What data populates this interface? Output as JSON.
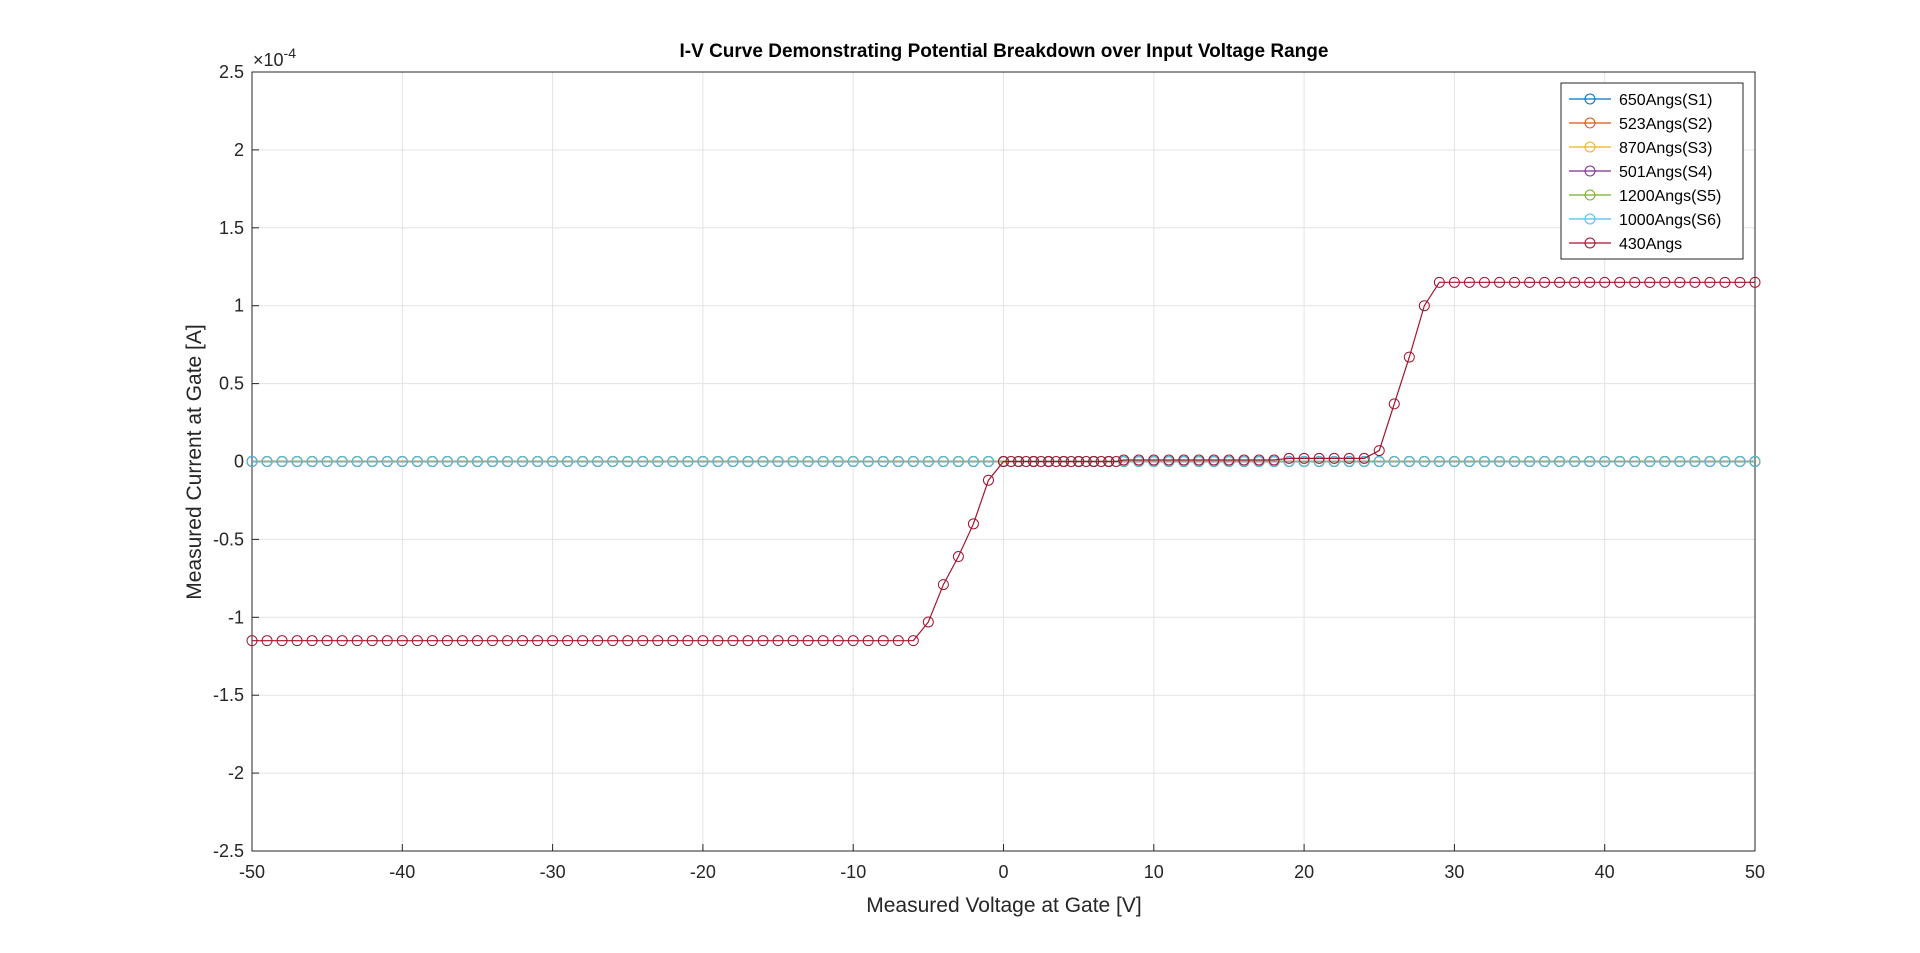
{
  "chart_data": {
    "type": "line",
    "title": "I-V Curve Demonstrating Potential Breakdown over Input Voltage Range",
    "xlabel": "Measured Voltage at Gate [V]",
    "ylabel": "Measured Current at Gate [A]",
    "y_multiplier": {
      "base": "×10",
      "exponent": "-4"
    },
    "xlim": [
      -50,
      50
    ],
    "ylim": [
      -2.5,
      2.5
    ],
    "xticks": [
      -50,
      -40,
      -30,
      -20,
      -10,
      0,
      10,
      20,
      30,
      40,
      50
    ],
    "yticks": [
      -2.5,
      -2,
      -1.5,
      -1,
      -0.5,
      0,
      0.5,
      1,
      1.5,
      2,
      2.5
    ],
    "grid": true,
    "legend": "top-right",
    "marker": "circle",
    "x": [
      -50,
      -49,
      -48,
      -47,
      -46,
      -45,
      -44,
      -43,
      -42,
      -41,
      -40,
      -39,
      -38,
      -37,
      -36,
      -35,
      -34,
      -33,
      -32,
      -31,
      -30,
      -29,
      -28,
      -27,
      -26,
      -25,
      -24,
      -23,
      -22,
      -21,
      -20,
      -19,
      -18,
      -17,
      -16,
      -15,
      -14,
      -13,
      -12,
      -11,
      -10,
      -9,
      -8,
      -7,
      -6,
      -5,
      -4,
      -3,
      -2,
      -1,
      0,
      1,
      2,
      3,
      4,
      5,
      6,
      7,
      8,
      9,
      10,
      11,
      12,
      13,
      14,
      15,
      16,
      17,
      18,
      19,
      20,
      21,
      22,
      23,
      24,
      25,
      26,
      27,
      28,
      29,
      30,
      31,
      32,
      33,
      34,
      35,
      36,
      37,
      38,
      39,
      40,
      41,
      42,
      43,
      44,
      45,
      46,
      47,
      48,
      49,
      50
    ],
    "series": [
      {
        "name": "650Angs(S1)",
        "color": "#0072BD",
        "values": [
          0,
          0,
          0,
          0,
          0,
          0,
          0,
          0,
          0,
          0,
          0,
          0,
          0,
          0,
          0,
          0,
          0,
          0,
          0,
          0,
          0,
          0,
          0,
          0,
          0,
          0,
          0,
          0,
          0,
          0,
          0,
          0,
          0,
          0,
          0,
          0,
          0,
          0,
          0,
          0,
          0,
          0,
          0,
          0,
          0,
          0,
          0,
          0,
          0,
          0,
          0,
          0,
          0,
          0,
          0,
          0,
          0,
          0,
          0,
          0,
          0,
          0,
          0,
          0,
          0,
          0,
          0,
          0,
          0,
          0,
          0,
          0,
          0,
          0,
          0,
          0,
          0,
          0,
          0,
          0,
          0,
          0,
          0,
          0,
          0,
          0,
          0,
          0,
          0,
          0,
          0,
          0,
          0,
          0,
          0,
          0,
          0,
          0,
          0,
          0,
          0
        ]
      },
      {
        "name": "523Angs(S2)",
        "color": "#D95319",
        "values": [
          0,
          0,
          0,
          0,
          0,
          0,
          0,
          0,
          0,
          0,
          0,
          0,
          0,
          0,
          0,
          0,
          0,
          0,
          0,
          0,
          0,
          0,
          0,
          0,
          0,
          0,
          0,
          0,
          0,
          0,
          0,
          0,
          0,
          0,
          0,
          0,
          0,
          0,
          0,
          0,
          0,
          0,
          0,
          0,
          0,
          0,
          0,
          0,
          0,
          0,
          0,
          0,
          0,
          0,
          0,
          0,
          0,
          0,
          0,
          0,
          0,
          0,
          0,
          0,
          0,
          0,
          0,
          0,
          0,
          0,
          0,
          0,
          0,
          0,
          0,
          0,
          0,
          0,
          0,
          0,
          0,
          0,
          0,
          0,
          0,
          0,
          0,
          0,
          0,
          0,
          0,
          0,
          0,
          0,
          0,
          0,
          0,
          0,
          0,
          0,
          0
        ]
      },
      {
        "name": "870Angs(S3)",
        "color": "#EDB120",
        "values": [
          0,
          0,
          0,
          0,
          0,
          0,
          0,
          0,
          0,
          0,
          0,
          0,
          0,
          0,
          0,
          0,
          0,
          0,
          0,
          0,
          0,
          0,
          0,
          0,
          0,
          0,
          0,
          0,
          0,
          0,
          0,
          0,
          0,
          0,
          0,
          0,
          0,
          0,
          0,
          0,
          0,
          0,
          0,
          0,
          0,
          0,
          0,
          0,
          0,
          0,
          0,
          0,
          0,
          0,
          0,
          0,
          0,
          0,
          0,
          0,
          0,
          0,
          0,
          0,
          0,
          0,
          0,
          0,
          0,
          0,
          0,
          0,
          0,
          0,
          0,
          0,
          0,
          0,
          0,
          0,
          0,
          0,
          0,
          0,
          0,
          0,
          0,
          0,
          0,
          0,
          0,
          0,
          0,
          0,
          0,
          0,
          0,
          0,
          0,
          0,
          0
        ]
      },
      {
        "name": "501Angs(S4)",
        "color": "#7E2F8E",
        "values": [
          0,
          0,
          0,
          0,
          0,
          0,
          0,
          0,
          0,
          0,
          0,
          0,
          0,
          0,
          0,
          0,
          0,
          0,
          0,
          0,
          0,
          0,
          0,
          0,
          0,
          0,
          0,
          0,
          0,
          0,
          0,
          0,
          0,
          0,
          0,
          0,
          0,
          0,
          0,
          0,
          0,
          0,
          0,
          0,
          0,
          0,
          0,
          0,
          0,
          0,
          0,
          0,
          0,
          0,
          0,
          0,
          0,
          0,
          0,
          0,
          0,
          0,
          0,
          0,
          0,
          0,
          0,
          0,
          0,
          0,
          0,
          0,
          0,
          0,
          0,
          0,
          0,
          0,
          0,
          0,
          0,
          0,
          0,
          0,
          0,
          0,
          0,
          0,
          0,
          0,
          0,
          0,
          0,
          0,
          0,
          0,
          0,
          0,
          0,
          0,
          0
        ]
      },
      {
        "name": "1200Angs(S5)",
        "color": "#77AC30",
        "values": [
          0,
          0,
          0,
          0,
          0,
          0,
          0,
          0,
          0,
          0,
          0,
          0,
          0,
          0,
          0,
          0,
          0,
          0,
          0,
          0,
          0,
          0,
          0,
          0,
          0,
          0,
          0,
          0,
          0,
          0,
          0,
          0,
          0,
          0,
          0,
          0,
          0,
          0,
          0,
          0,
          0,
          0,
          0,
          0,
          0,
          0,
          0,
          0,
          0,
          0,
          0,
          0,
          0,
          0,
          0,
          0,
          0,
          0,
          0,
          0,
          0,
          0,
          0,
          0,
          0,
          0,
          0,
          0,
          0,
          0,
          0,
          0,
          0,
          0,
          0,
          0,
          0,
          0,
          0,
          0,
          0,
          0,
          0,
          0,
          0,
          0,
          0,
          0,
          0,
          0,
          0,
          0,
          0,
          0,
          0,
          0,
          0,
          0,
          0,
          0,
          0
        ]
      },
      {
        "name": "1000Angs(S6)",
        "color": "#4DBEEE",
        "values": [
          0,
          0,
          0,
          0,
          0,
          0,
          0,
          0,
          0,
          0,
          0,
          0,
          0,
          0,
          0,
          0,
          0,
          0,
          0,
          0,
          0,
          0,
          0,
          0,
          0,
          0,
          0,
          0,
          0,
          0,
          0,
          0,
          0,
          0,
          0,
          0,
          0,
          0,
          0,
          0,
          0,
          0,
          0,
          0,
          0,
          0,
          0,
          0,
          0,
          0,
          0,
          0,
          0,
          0,
          0,
          0,
          0,
          0,
          0,
          0,
          0,
          0,
          0,
          0,
          0,
          0,
          0,
          0,
          0,
          0,
          0,
          0,
          0,
          0,
          0,
          0,
          0,
          0,
          0,
          0,
          0,
          0,
          0,
          0,
          0,
          0,
          0,
          0,
          0,
          0,
          0,
          0,
          0,
          0,
          0,
          0,
          0,
          0,
          0,
          0,
          0
        ]
      },
      {
        "name": "430Angs",
        "color": "#A2142F",
        "x": [
          -50,
          -49,
          -48,
          -47,
          -46,
          -45,
          -44,
          -43,
          -42,
          -41,
          -40,
          -39,
          -38,
          -37,
          -36,
          -35,
          -34,
          -33,
          -32,
          -31,
          -30,
          -29,
          -28,
          -27,
          -26,
          -25,
          -24,
          -23,
          -22,
          -21,
          -20,
          -19,
          -18,
          -17,
          -16,
          -15,
          -14,
          -13,
          -12,
          -11,
          -10,
          -9,
          -8,
          -7,
          -6,
          -5,
          -4,
          -3,
          -2,
          -1,
          0,
          0.5,
          1,
          1.5,
          2,
          2.5,
          3,
          3.5,
          4,
          4.5,
          5,
          5.5,
          6,
          6.5,
          7,
          7.5,
          8,
          9,
          10,
          11,
          12,
          13,
          14,
          15,
          16,
          17,
          18,
          19,
          20,
          21,
          22,
          23,
          24,
          25,
          26,
          27,
          28,
          29,
          30,
          31,
          32,
          33,
          34,
          35,
          36,
          37,
          38,
          39,
          40,
          41,
          42,
          43,
          44,
          45,
          46,
          47,
          48,
          49,
          50
        ],
        "values": [
          -1.15,
          -1.15,
          -1.15,
          -1.15,
          -1.15,
          -1.15,
          -1.15,
          -1.15,
          -1.15,
          -1.15,
          -1.15,
          -1.15,
          -1.15,
          -1.15,
          -1.15,
          -1.15,
          -1.15,
          -1.15,
          -1.15,
          -1.15,
          -1.15,
          -1.15,
          -1.15,
          -1.15,
          -1.15,
          -1.15,
          -1.15,
          -1.15,
          -1.15,
          -1.15,
          -1.15,
          -1.15,
          -1.15,
          -1.15,
          -1.15,
          -1.15,
          -1.15,
          -1.15,
          -1.15,
          -1.15,
          -1.15,
          -1.15,
          -1.15,
          -1.15,
          -1.15,
          -1.03,
          -0.79,
          -0.61,
          -0.4,
          -0.12,
          0,
          0,
          0,
          0,
          0,
          0,
          0,
          0,
          0,
          0,
          0,
          0,
          0,
          0,
          0,
          0,
          0.01,
          0.01,
          0.01,
          0.01,
          0.01,
          0.01,
          0.01,
          0.01,
          0.01,
          0.01,
          0.01,
          0.02,
          0.02,
          0.02,
          0.02,
          0.02,
          0.02,
          0.07,
          0.37,
          0.67,
          1,
          1.15,
          1.15,
          1.15,
          1.15,
          1.15,
          1.15,
          1.15,
          1.15,
          1.15,
          1.15,
          1.15,
          1.15,
          1.15,
          1.15,
          1.15,
          1.15,
          1.15,
          1.15,
          1.15,
          1.15,
          1.15,
          1.15
        ]
      }
    ]
  }
}
